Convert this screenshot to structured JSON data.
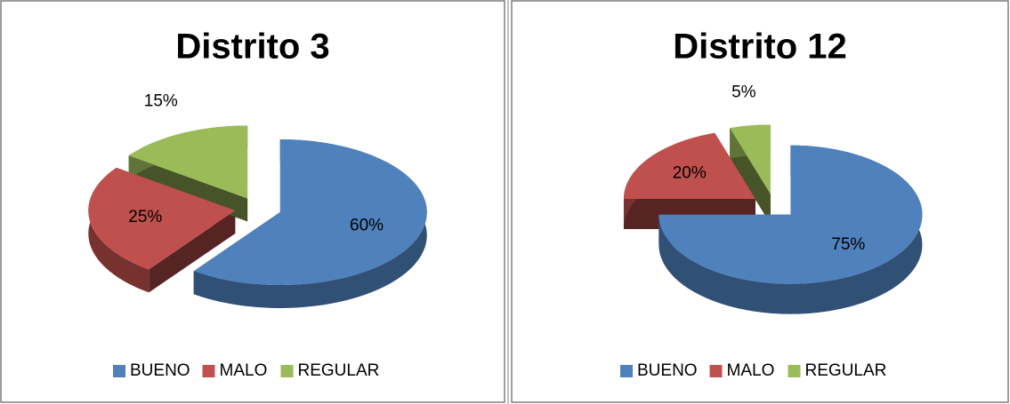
{
  "chart_data": [
    {
      "type": "pie",
      "title": "Distrito 3",
      "categories": [
        "BUENO",
        "MALO",
        "REGULAR"
      ],
      "values": [
        60,
        25,
        15
      ],
      "value_labels": [
        "60%",
        "25%",
        "15%"
      ],
      "colors": [
        "#4f81bd",
        "#c0504d",
        "#9bbb59"
      ],
      "legend": "bottom"
    },
    {
      "type": "pie",
      "title": "Distrito 12",
      "categories": [
        "BUENO",
        "MALO",
        "REGULAR"
      ],
      "values": [
        75,
        20,
        5
      ],
      "value_labels": [
        "75%",
        "20%",
        "5%"
      ],
      "colors": [
        "#4f81bd",
        "#c0504d",
        "#9bbb59"
      ],
      "legend": "bottom"
    }
  ]
}
